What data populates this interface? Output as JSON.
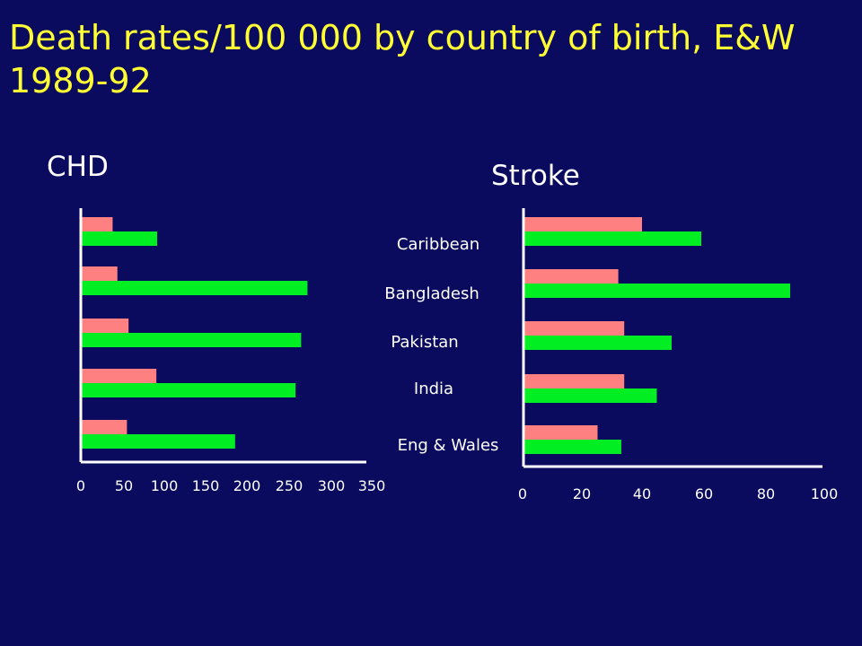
{
  "slide": {
    "title": "Death rates/100 000 by country of birth, E&W 1989-92",
    "background": "#0a0a5e",
    "title_color": "#ffff33"
  },
  "colors": {
    "series_a": "#ff8080",
    "series_b": "#00ee22",
    "axis": "#ffffff"
  },
  "chart_data": [
    {
      "type": "bar",
      "orientation": "horizontal",
      "title": "CHD",
      "categories": [
        "Caribbean",
        "Bangladesh",
        "Pakistan",
        "India",
        "Eng & Wales"
      ],
      "series": [
        {
          "values": [
            40,
            46,
            60,
            95,
            58
          ]
        },
        {
          "values": [
            96,
            285,
            277,
            270,
            194
          ]
        }
      ],
      "xlim": [
        0,
        350
      ],
      "xticks": [
        "0",
        "50",
        "100",
        "150",
        "200",
        "250",
        "300",
        "350"
      ]
    },
    {
      "type": "bar",
      "orientation": "horizontal",
      "title": "Stroke",
      "categories": [
        "Caribbean",
        "Bangladesh",
        "Pakistan",
        "India",
        "Eng & Wales"
      ],
      "series": [
        {
          "values": [
            40,
            32,
            34,
            34,
            25
          ]
        },
        {
          "values": [
            60,
            90,
            50,
            45,
            33
          ]
        }
      ],
      "xlim": [
        0,
        100
      ],
      "xticks": [
        "0",
        "20",
        "40",
        "60",
        "80",
        "100"
      ]
    }
  ]
}
